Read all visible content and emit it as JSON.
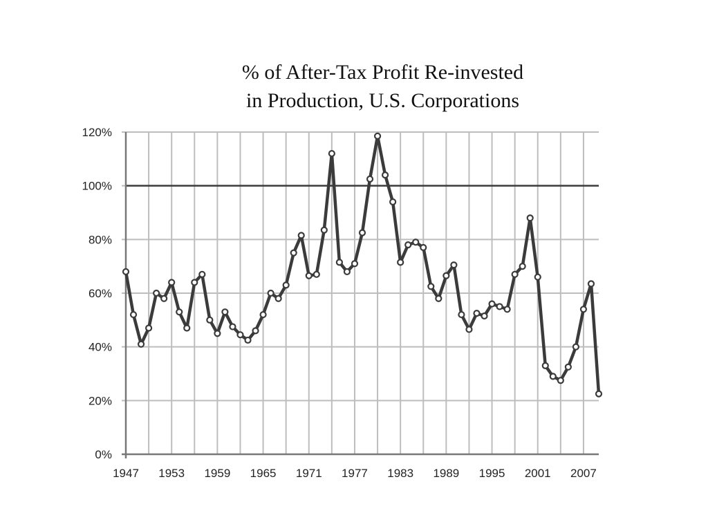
{
  "chart_data": {
    "type": "line",
    "title_lines": [
      "% of After-Tax Profit Re-invested",
      "in Production, U.S. Corporations"
    ],
    "xlabel": "",
    "ylabel": "",
    "x_tick_labels": [
      "1947",
      "1953",
      "1959",
      "1965",
      "1971",
      "1977",
      "1983",
      "1989",
      "1995",
      "2001",
      "2007"
    ],
    "y_tick_labels": [
      "0%",
      "20%",
      "40%",
      "60%",
      "80%",
      "100%",
      "120%"
    ],
    "ylim": [
      0,
      120
    ],
    "xlim": [
      1947,
      2009
    ],
    "reference_line": 100,
    "grid": true,
    "legend": "none",
    "series": [
      {
        "x": [
          1947,
          1948,
          1949,
          1950,
          1951,
          1952,
          1953,
          1954,
          1955,
          1956,
          1957,
          1958,
          1959,
          1960,
          1961,
          1962,
          1963,
          1964,
          1965,
          1966,
          1967,
          1968,
          1969,
          1970,
          1971,
          1972,
          1973,
          1974,
          1975,
          1976,
          1977,
          1978,
          1979,
          1980,
          1981,
          1982,
          1983,
          1984,
          1985,
          1986,
          1987,
          1988,
          1989,
          1990,
          1991,
          1992,
          1993,
          1994,
          1995,
          1996,
          1997,
          1998,
          1999,
          2000,
          2001,
          2002,
          2003,
          2004,
          2005,
          2006,
          2007,
          2008,
          2009
        ],
        "values": [
          68,
          52,
          41,
          47,
          60,
          58,
          64,
          53,
          47,
          64,
          67,
          50,
          45,
          53,
          47.5,
          44.5,
          42.5,
          46,
          52,
          60,
          58,
          63,
          75,
          81.5,
          66.5,
          67,
          83.5,
          112,
          71.5,
          68,
          71,
          82.5,
          102.5,
          118.5,
          104,
          94,
          71.5,
          78,
          79,
          77,
          62.5,
          58,
          66.5,
          70.5,
          52,
          46.5,
          52.5,
          51.5,
          56,
          55,
          54,
          67,
          70,
          88,
          66,
          33,
          29,
          27.5,
          32.5,
          40,
          54,
          63.5,
          22.5
        ]
      }
    ],
    "colors": {
      "line": "#3b3b3b",
      "grid": "#bdbdbd",
      "axis": "#777777",
      "reference": "#3b3b3b",
      "marker_fill": "#ffffff"
    }
  }
}
